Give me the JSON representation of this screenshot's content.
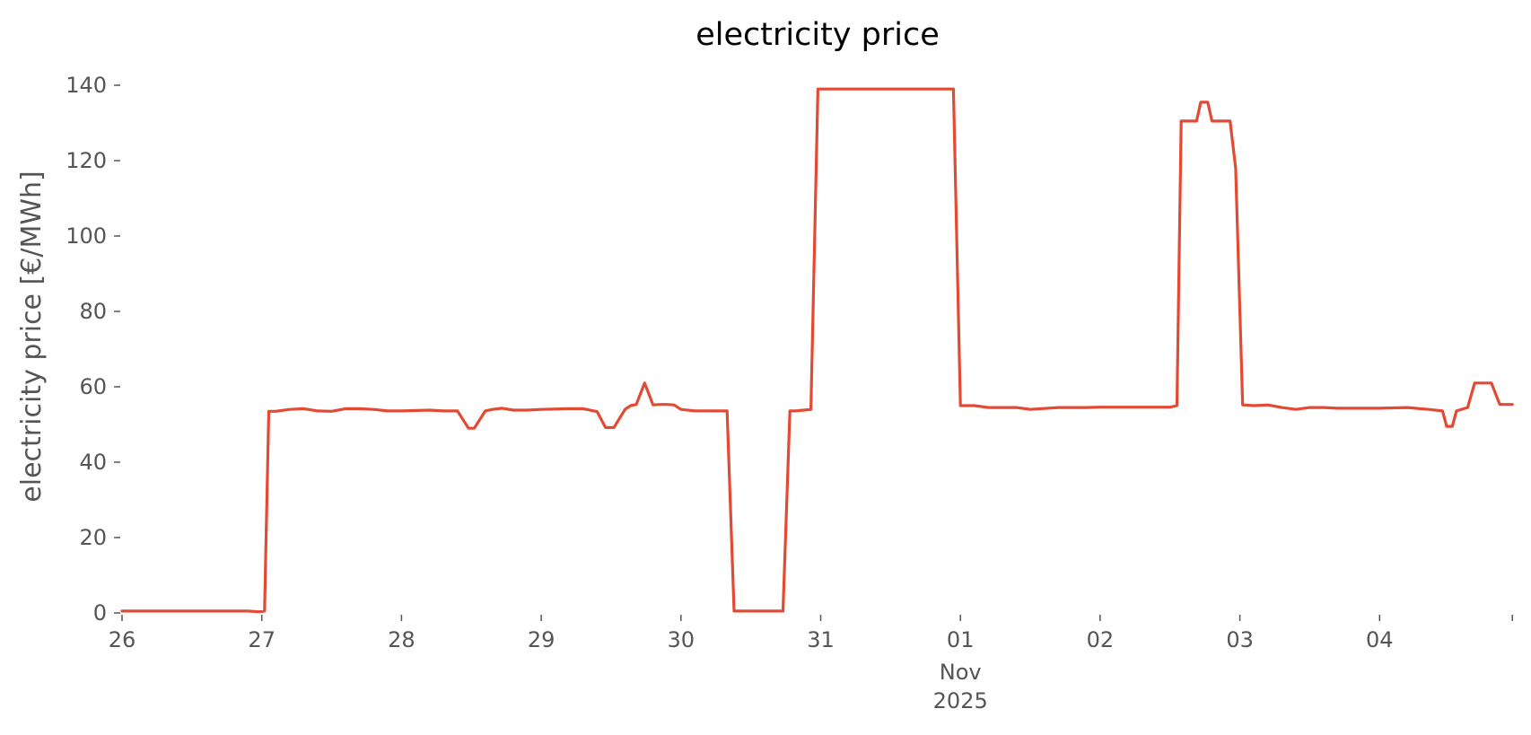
{
  "chart_data": {
    "type": "line",
    "title": "electricity price",
    "xlabel": "",
    "ylabel": "electricity price [€/MWh]",
    "x_unit": "day",
    "x_start": "2025-10-26",
    "xlim": [
      0,
      9.95
    ],
    "ylim": [
      0,
      140
    ],
    "yticks": [
      0,
      20,
      40,
      60,
      80,
      100,
      120,
      140
    ],
    "xticks": [
      {
        "x": 0,
        "label": "26"
      },
      {
        "x": 1,
        "label": "27"
      },
      {
        "x": 2,
        "label": "28"
      },
      {
        "x": 3,
        "label": "29"
      },
      {
        "x": 4,
        "label": "30"
      },
      {
        "x": 5,
        "label": "31"
      },
      {
        "x": 6,
        "label": "01",
        "sub1": "Nov",
        "sub2": "2025"
      },
      {
        "x": 7,
        "label": "02"
      },
      {
        "x": 8,
        "label": "03"
      },
      {
        "x": 9,
        "label": "04"
      },
      {
        "x": 9.95,
        "label": ""
      }
    ],
    "grid": false,
    "legend": "none",
    "line_color": "#E24A33",
    "series": [
      {
        "x": [
          0,
          0.9,
          0.98,
          1.02,
          1.05,
          1.1,
          1.2,
          1.3,
          1.4,
          1.5,
          1.6,
          1.7,
          1.8,
          1.9,
          2.0,
          2.2,
          2.3,
          2.4,
          2.48,
          2.52,
          2.6,
          2.65,
          2.72,
          2.8,
          2.9,
          3.0,
          3.2,
          3.3,
          3.4,
          3.46,
          3.52,
          3.6,
          3.64,
          3.68,
          3.74,
          3.8,
          3.85,
          3.9,
          3.95,
          4.0,
          4.1,
          4.2,
          4.33,
          4.38,
          4.43,
          4.5,
          4.6,
          4.7,
          4.73,
          4.78,
          4.82,
          4.88,
          4.93,
          4.98,
          5.05,
          5.2,
          5.5,
          5.8,
          5.95,
          6.0,
          6.1,
          6.2,
          6.4,
          6.5,
          6.7,
          6.9,
          7.0,
          7.2,
          7.4,
          7.5,
          7.55,
          7.58,
          7.65,
          7.69,
          7.72,
          7.77,
          7.8,
          7.87,
          7.93,
          7.97,
          8.02,
          8.1,
          8.2,
          8.3,
          8.4,
          8.5,
          8.6,
          8.7,
          8.8,
          9.0,
          9.2,
          9.35,
          9.45,
          9.48,
          9.52,
          9.55,
          9.63,
          9.68,
          9.7,
          9.75,
          9.8,
          9.86,
          9.9,
          9.95
        ],
        "y": [
          0.5,
          0.5,
          0.3,
          0.5,
          53.5,
          53.5,
          54,
          54.2,
          53.6,
          53.5,
          54.2,
          54.2,
          54,
          53.6,
          53.6,
          53.8,
          53.6,
          53.6,
          49,
          49,
          53.6,
          54,
          54.3,
          53.8,
          53.8,
          54,
          54.2,
          54.2,
          53.4,
          49.2,
          49.2,
          54,
          55,
          55.3,
          61,
          55.2,
          55.3,
          55.3,
          55.2,
          54,
          53.6,
          53.6,
          53.6,
          0.5,
          0.5,
          0.5,
          0.5,
          0.5,
          0.5,
          53.6,
          53.6,
          53.8,
          54,
          139,
          139,
          139,
          139,
          139,
          139,
          55,
          55,
          54.5,
          54.5,
          54,
          54.5,
          54.5,
          54.6,
          54.6,
          54.6,
          54.6,
          55,
          130.5,
          130.5,
          130.5,
          135.5,
          135.5,
          130.5,
          130.5,
          130.5,
          118,
          55.2,
          55,
          55.2,
          54.5,
          54,
          54.5,
          54.5,
          54.3,
          54.3,
          54.3,
          54.5,
          54,
          53.6,
          49.5,
          49.5,
          53.6,
          54.5,
          61,
          61,
          61,
          61,
          55.3,
          55.3,
          55.3
        ]
      }
    ]
  }
}
